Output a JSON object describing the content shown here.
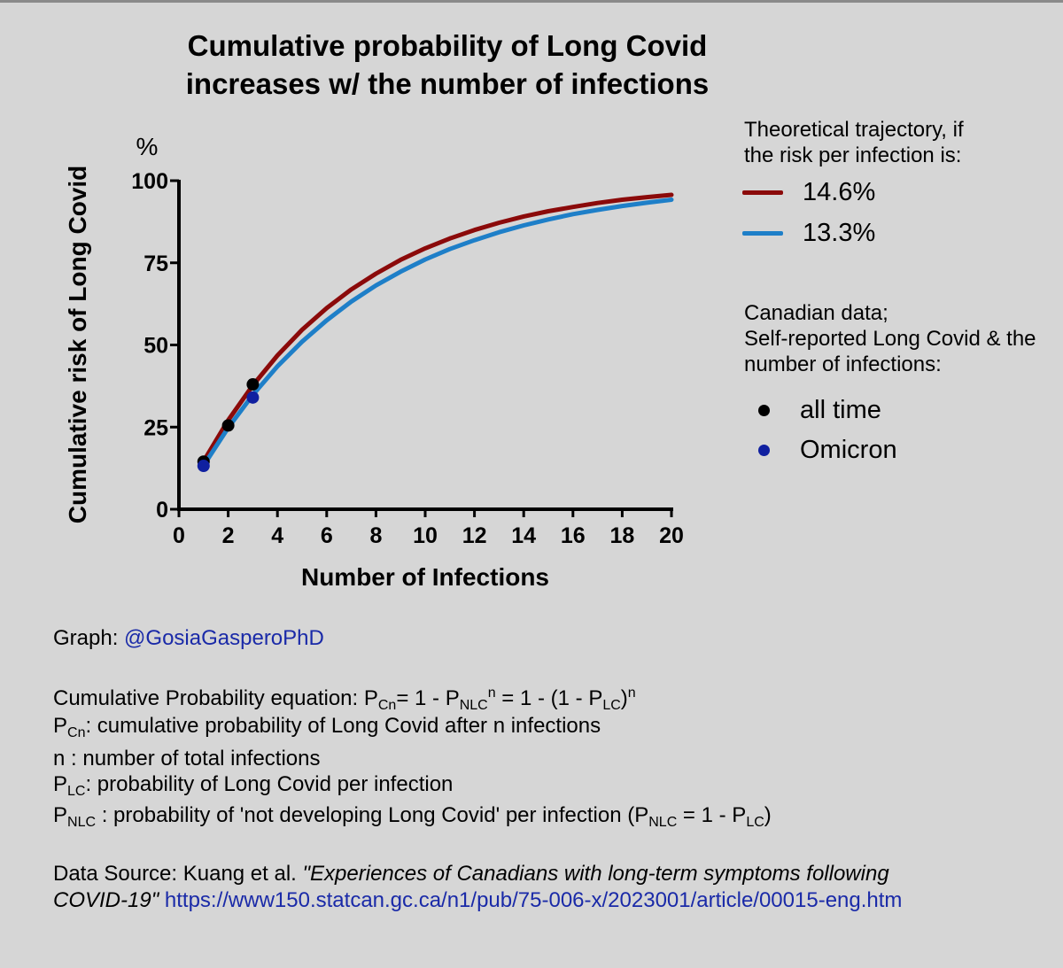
{
  "chart_data": {
    "type": "line",
    "title": "Cumulative probability of Long Covid increases w/ the number of infections",
    "xlabel": "Number of Infections",
    "ylabel": "Cumulative risk of Long Covid",
    "y_unit": "%",
    "xlim": [
      0,
      20
    ],
    "ylim": [
      0,
      100
    ],
    "x_ticks": [
      "0",
      "2",
      "4",
      "6",
      "8",
      "10",
      "12",
      "14",
      "16",
      "18",
      "20"
    ],
    "y_ticks": [
      "0",
      "25",
      "50",
      "75",
      "100"
    ],
    "grid": false,
    "legend_placement": "right",
    "series": [
      {
        "name": "14.6%",
        "kind": "line",
        "color": "#8b0a0a",
        "x": [
          1,
          2,
          3,
          4,
          5,
          6,
          7,
          8,
          9,
          10,
          11,
          12,
          13,
          14,
          15,
          16,
          17,
          18,
          19,
          20
        ],
        "values": [
          14.6,
          27.1,
          37.7,
          46.8,
          54.6,
          61.2,
          66.9,
          71.7,
          75.9,
          79.4,
          82.4,
          85.0,
          87.2,
          89.1,
          90.7,
          92.0,
          93.2,
          94.2,
          95.0,
          95.7
        ]
      },
      {
        "name": "13.3%",
        "kind": "line",
        "color": "#1e7fc8",
        "x": [
          1,
          2,
          3,
          4,
          5,
          6,
          7,
          8,
          9,
          10,
          11,
          12,
          13,
          14,
          15,
          16,
          17,
          18,
          19,
          20
        ],
        "values": [
          13.3,
          24.8,
          34.8,
          43.5,
          51.0,
          57.5,
          63.2,
          68.1,
          72.3,
          76.0,
          79.2,
          81.9,
          84.3,
          86.4,
          88.2,
          89.8,
          91.1,
          92.3,
          93.3,
          94.2
        ]
      },
      {
        "name": "all time",
        "kind": "points",
        "color": "#000000",
        "x": [
          1,
          2,
          3
        ],
        "values": [
          14.5,
          25.5,
          38
        ]
      },
      {
        "name": "Omicron",
        "kind": "points",
        "color": "#1020a0",
        "x": [
          1,
          3
        ],
        "values": [
          13.2,
          34
        ]
      }
    ]
  },
  "legend": {
    "heading_lines_1": [
      "Theoretical trajectory, if",
      "the risk per infection is:"
    ],
    "line_items": [
      {
        "label": "14.6%",
        "color": "#8b0a0a"
      },
      {
        "label": "13.3%",
        "color": "#1e7fc8"
      }
    ],
    "heading_lines_2": [
      "Canadian data;",
      "Self-reported Long Covid & the",
      "number of infections:"
    ],
    "point_items": [
      {
        "label": "all time",
        "color": "#000000"
      },
      {
        "label": "Omicron",
        "color": "#1020a0"
      }
    ]
  },
  "notes": {
    "graph_label": "Graph: ",
    "graph_handle": "@GosiaGasperoPhD",
    "eq": {
      "prefix": "Cumulative Probability equation: P",
      "sub_cn": "Cn",
      "mid1": "= 1 - P",
      "sub_nlc": "NLC",
      "sup_n": "n",
      "mid2": " = 1 - (1 - P",
      "sub_lc": "LC",
      "close": ")",
      "sup_n2": "n"
    },
    "def_pcn": {
      "p": "P",
      "sub": "Cn",
      "text": ": cumulative probability of Long Covid after n infections"
    },
    "def_n": "n : number of total infections",
    "def_plc": {
      "p": "P",
      "sub": "LC",
      "text": ": probability of Long Covid per infection"
    },
    "def_pnlc": {
      "p": "P",
      "sub": "NLC",
      "text": " : probability of 'not developing Long Covid' per infection (P",
      "sub2": "NLC",
      "text2": " = 1 - P",
      "sub3": "LC",
      "close": ")"
    },
    "source_label": "Data Source: Kuang et al. ",
    "source_title_1": "\"Experiences of Canadians with long-term symptoms following",
    "source_title_2": "COVID-19\"",
    "source_url": " https://www150.statcan.gc.ca/n1/pub/75-006-x/2023001/article/00015-eng.htm"
  }
}
